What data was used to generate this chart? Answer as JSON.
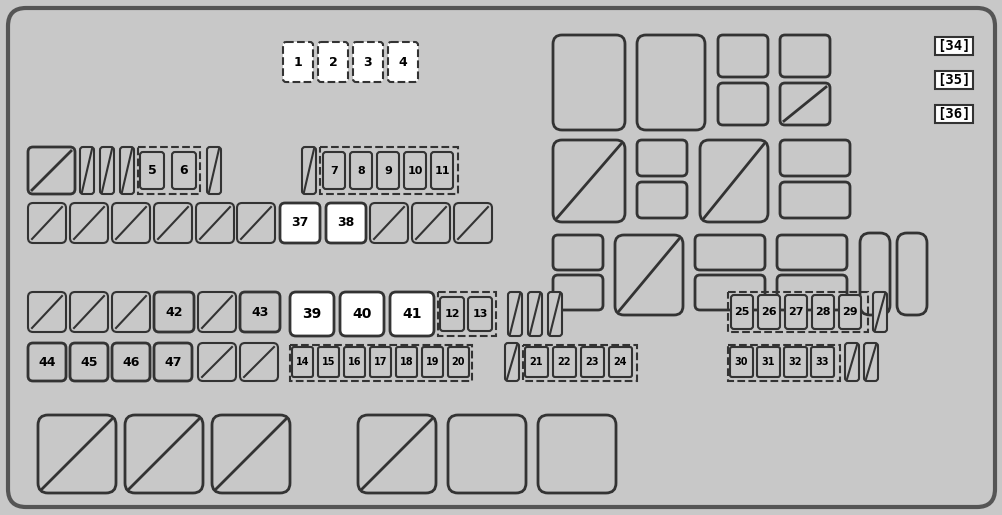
{
  "bg_color": "#c8c8c8",
  "border_color": "#333333",
  "white_fill": "#ffffff",
  "fig_width": 10.03,
  "fig_height": 5.15
}
